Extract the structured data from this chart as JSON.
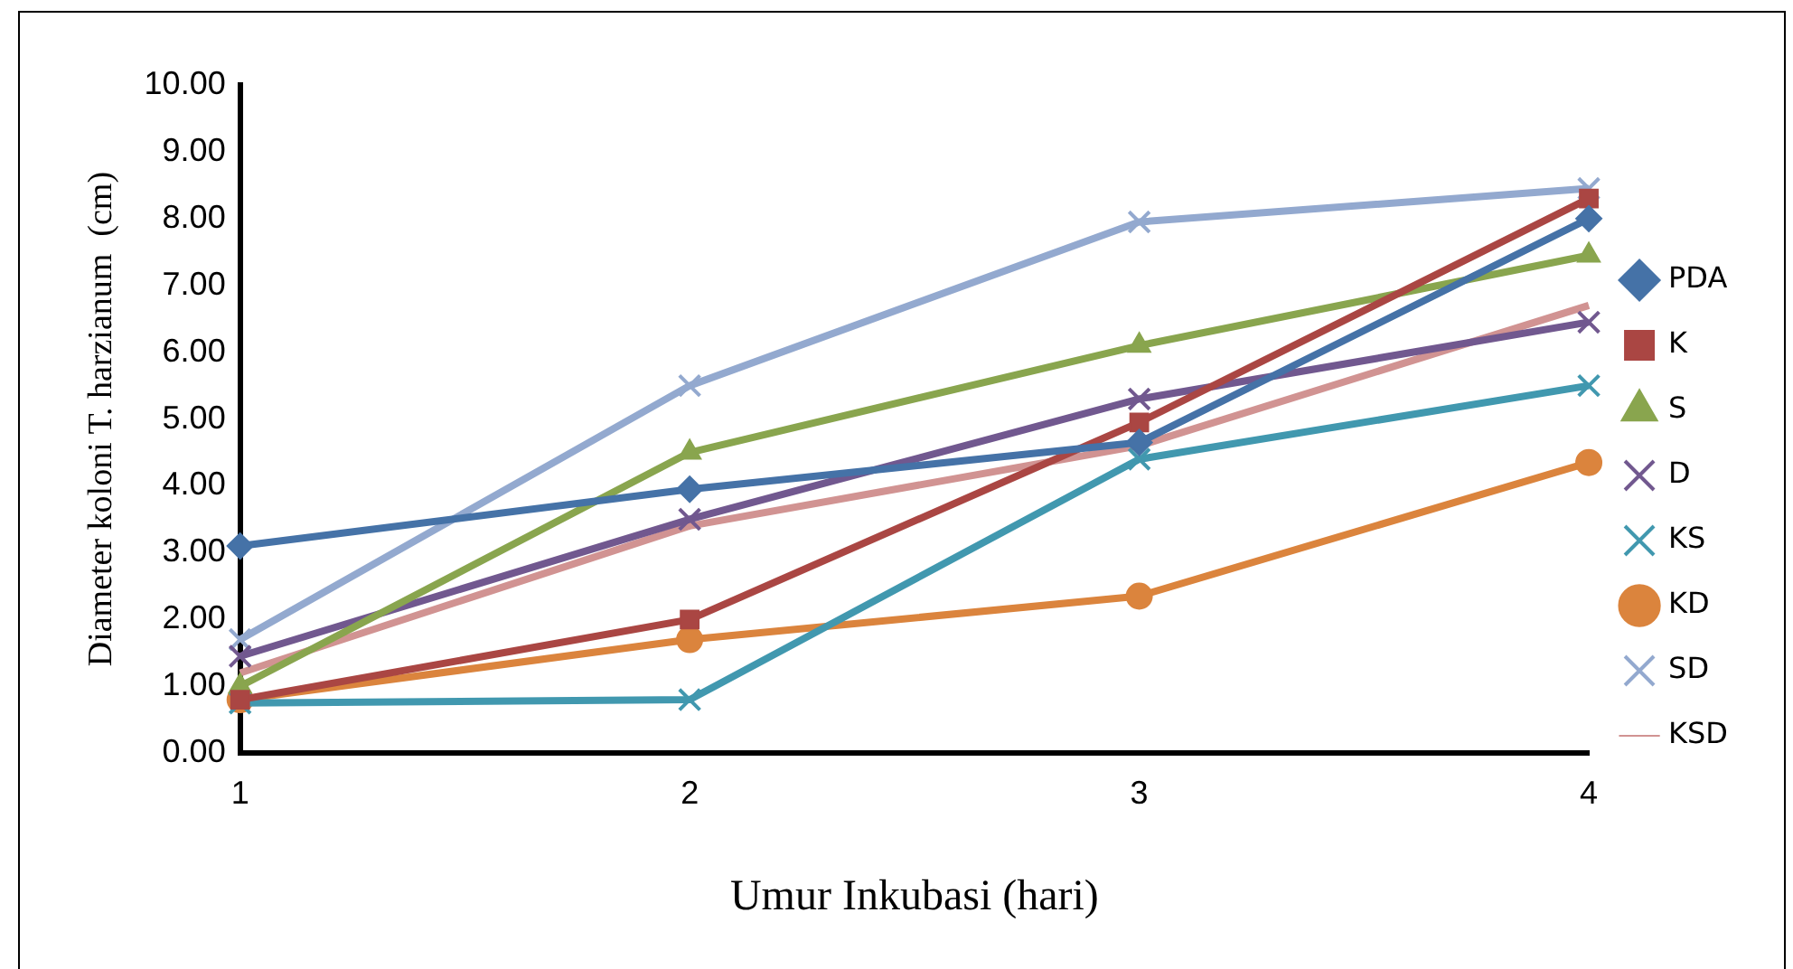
{
  "chart_data": {
    "type": "line",
    "xlabel": "Umur Inkubasi (hari)",
    "ylabel": "Diameter koloni T. harzianum  (cm)",
    "categories": [
      "1",
      "2",
      "3",
      "4"
    ],
    "ylim": [
      0,
      10
    ],
    "yticks": [
      {
        "value": 0,
        "label": "0.00"
      },
      {
        "value": 1,
        "label": "1.00"
      },
      {
        "value": 2,
        "label": "2.00"
      },
      {
        "value": 3,
        "label": "3.00"
      },
      {
        "value": 4,
        "label": "4.00"
      },
      {
        "value": 5,
        "label": "5.00"
      },
      {
        "value": 6,
        "label": "6.00"
      },
      {
        "value": 7,
        "label": "7.00"
      },
      {
        "value": 8,
        "label": "8.00"
      },
      {
        "value": 9,
        "label": "9.00"
      },
      {
        "value": 10,
        "label": "10.00"
      }
    ],
    "grid": false,
    "legend": "right",
    "series": [
      {
        "name": "PDA",
        "color": "#4572a7",
        "marker": "diamond",
        "values": [
          3.1,
          3.95,
          4.65,
          8.0
        ]
      },
      {
        "name": "K",
        "color": "#aa4643",
        "marker": "square",
        "values": [
          0.8,
          2.0,
          4.95,
          8.3
        ]
      },
      {
        "name": "S",
        "color": "#89a54e",
        "marker": "triangle",
        "values": [
          1.0,
          4.5,
          6.1,
          7.45
        ]
      },
      {
        "name": "D",
        "color": "#71588f",
        "marker": "cross",
        "values": [
          1.45,
          3.5,
          5.3,
          6.45
        ]
      },
      {
        "name": "KS",
        "color": "#4198af",
        "marker": "cross",
        "values": [
          0.75,
          0.8,
          4.4,
          5.5
        ]
      },
      {
        "name": "KD",
        "color": "#db843d",
        "marker": "circle",
        "values": [
          0.8,
          1.7,
          2.35,
          4.35
        ]
      },
      {
        "name": "SD",
        "color": "#93a9cf",
        "marker": "cross",
        "values": [
          1.7,
          5.5,
          7.95,
          8.45
        ]
      },
      {
        "name": "KSD",
        "color": "#d19392",
        "marker": "none",
        "values": [
          1.2,
          3.4,
          4.6,
          6.7
        ]
      }
    ]
  }
}
